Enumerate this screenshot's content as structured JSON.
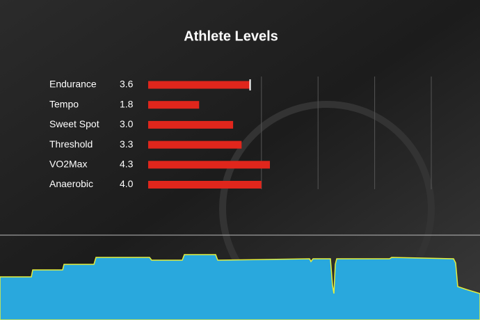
{
  "chart_data": {
    "type": "bar",
    "orientation": "horizontal",
    "title": "Athlete Levels",
    "categories": [
      "Endurance",
      "Tempo",
      "Sweet Spot",
      "Threshold",
      "VO2Max",
      "Anaerobic"
    ],
    "values": [
      3.6,
      1.8,
      3.0,
      3.3,
      4.3,
      4.0
    ],
    "value_labels": [
      "3.6",
      "1.8",
      "3.0",
      "3.3",
      "4.3",
      "4.0"
    ],
    "color": "#e0261c",
    "xlim": [
      0,
      10
    ],
    "xgrid": [
      4,
      6,
      8,
      10
    ]
  }
}
